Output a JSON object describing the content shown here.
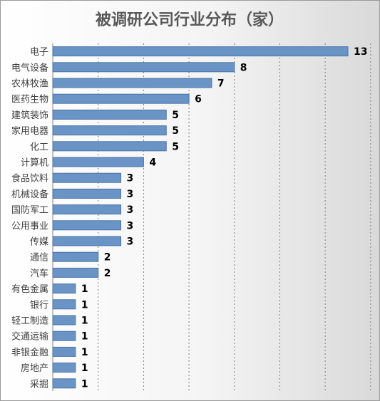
{
  "chart_data": {
    "type": "bar",
    "orientation": "horizontal",
    "title": "被调研公司行业分布（家）",
    "categories": [
      "电子",
      "电气设备",
      "农林牧渔",
      "医药生物",
      "建筑装饰",
      "家用电器",
      "化工",
      "计算机",
      "食品饮料",
      "机械设备",
      "国防军工",
      "公用事业",
      "传媒",
      "通信",
      "汽车",
      "有色金属",
      "银行",
      "轻工制造",
      "交通运输",
      "非银金融",
      "房地产",
      "采掘"
    ],
    "values": [
      13,
      8,
      7,
      6,
      5,
      5,
      5,
      4,
      3,
      3,
      3,
      3,
      3,
      2,
      2,
      1,
      1,
      1,
      1,
      1,
      1,
      1
    ],
    "xlim": [
      0,
      14
    ],
    "grid": true,
    "data_labels": true,
    "legend": "none"
  },
  "colors": {
    "bar_fill": "#6a93c6",
    "bar_stroke": "#4a74a8",
    "grid": "#7f7f7f",
    "title": "#595959"
  }
}
